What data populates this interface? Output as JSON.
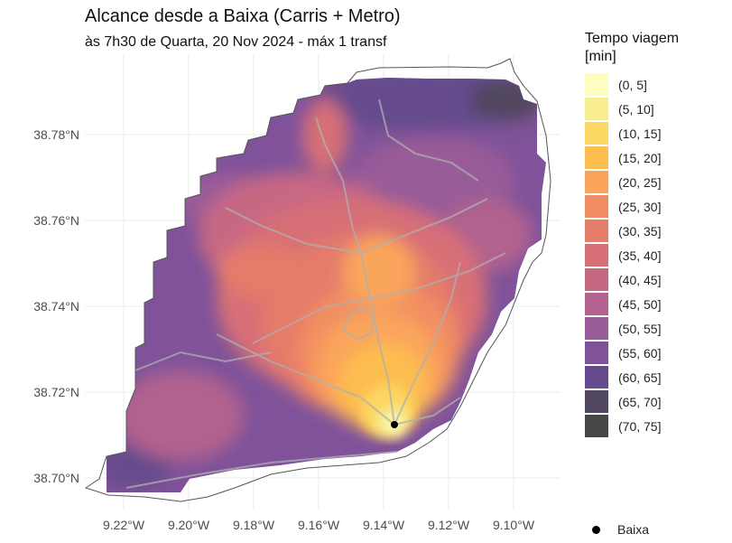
{
  "title": "Alcance desde a Baixa (Carris + Metro)",
  "subtitle": "às 7h30 de Quarta, 20 Nov 2024 - máx 1 transf",
  "legend": {
    "title_line1": "Tempo viagem",
    "title_line2": "[min]",
    "items": [
      {
        "label": "(0, 5]",
        "color": "#fcfdbf"
      },
      {
        "label": "(5, 10]",
        "color": "#f7ec8e"
      },
      {
        "label": "(10, 15]",
        "color": "#fcd662"
      },
      {
        "label": "(15, 20]",
        "color": "#fdbd4f"
      },
      {
        "label": "(20, 25]",
        "color": "#faa55b"
      },
      {
        "label": "(25, 30]",
        "color": "#f28f62"
      },
      {
        "label": "(30, 35]",
        "color": "#e57c6a"
      },
      {
        "label": "(35, 40]",
        "color": "#d76f76"
      },
      {
        "label": "(40, 45]",
        "color": "#c76883"
      },
      {
        "label": "(45, 50]",
        "color": "#b2628e"
      },
      {
        "label": "(50, 55]",
        "color": "#985c98"
      },
      {
        "label": "(55, 60]",
        "color": "#7f529a"
      },
      {
        "label": "(60, 65]",
        "color": "#654b8d"
      },
      {
        "label": "(65, 70]",
        "color": "#514761"
      },
      {
        "label": "(70, 75]",
        "color": "#474747"
      }
    ]
  },
  "point_legend": {
    "label": "Baixa"
  },
  "axes": {
    "x_ticks": [
      "9.22°W",
      "9.20°W",
      "9.18°W",
      "9.16°W",
      "9.14°W",
      "9.12°W",
      "9.10°W"
    ],
    "y_ticks": [
      "38.78°N",
      "38.76°N",
      "38.74°N",
      "38.72°N",
      "38.70°N"
    ]
  }
}
